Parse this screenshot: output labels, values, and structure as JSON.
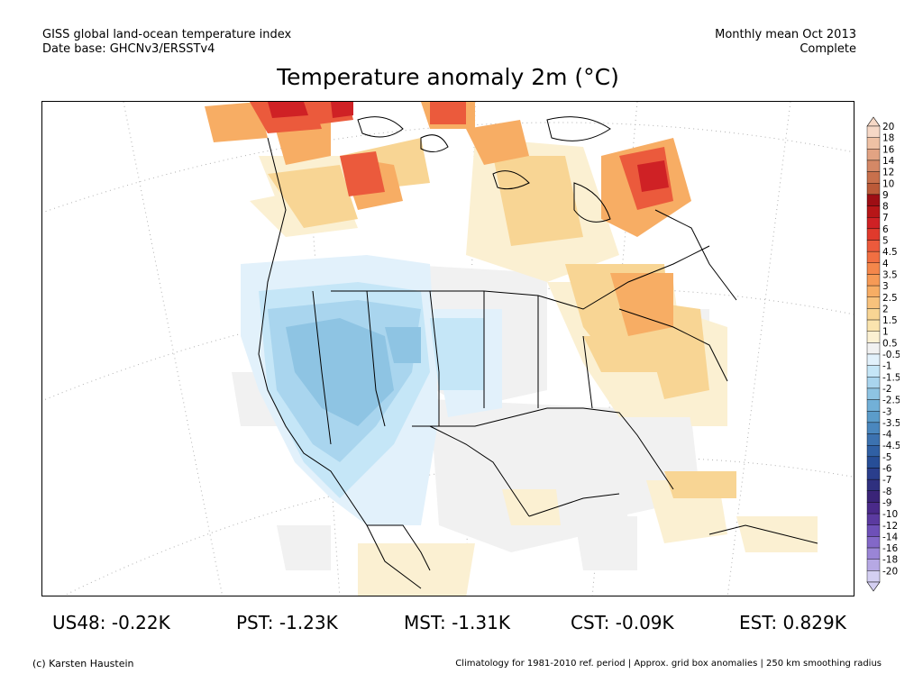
{
  "header": {
    "line1_left": "GISS global land-ocean temperature index",
    "line2_left": "Date base: GHCNv3/ERSSTv4",
    "line1_right": "Monthly mean Oct 2013",
    "line2_right": "Complete"
  },
  "title": "Temperature anomaly 2m (°C)",
  "legend": {
    "labels": [
      "20",
      "18",
      "16",
      "14",
      "12",
      "10",
      "9",
      "8",
      "7",
      "6",
      "5",
      "4.5",
      "4",
      "3.5",
      "3",
      "2.5",
      "2",
      "1.5",
      "1",
      "0.5",
      "-0.5",
      "-1",
      "-1.5",
      "-2",
      "-2.5",
      "-3",
      "-3.5",
      "-4",
      "-4.5",
      "-5",
      "-6",
      "-7",
      "-8",
      "-9",
      "-10",
      "-12",
      "-14",
      "-16",
      "-18",
      "-20"
    ],
    "colors": [
      "#f6d8c6",
      "#efc1a4",
      "#e2a383",
      "#d48866",
      "#c8704c",
      "#bb5a38",
      "#9e0e14",
      "#b71618",
      "#cf2125",
      "#e03a2c",
      "#eb5a3c",
      "#f16f42",
      "#f4874b",
      "#f69a56",
      "#f7ad64",
      "#f8c27c",
      "#f8d594",
      "#fae4ae",
      "#fbf0d2",
      "#f1f1f1",
      "#e2f1fb",
      "#c5e6f7",
      "#a9d5ee",
      "#8ec4e3",
      "#72b0d7",
      "#5b9cca",
      "#4a87be",
      "#3c72b0",
      "#3060a4",
      "#274e97",
      "#2a3e8c",
      "#2f307f",
      "#3a2478",
      "#4a2a8a",
      "#5b3aa0",
      "#6e50b8",
      "#8368c8",
      "#9a85d6",
      "#b6a8e4",
      "#d4cff2"
    ]
  },
  "stats": [
    {
      "label": "US48: -0.22K"
    },
    {
      "label": "PST: -1.23K"
    },
    {
      "label": "MST: -1.31K"
    },
    {
      "label": "CST: -0.09K"
    },
    {
      "label": "EST: 0.829K"
    }
  ],
  "footer": {
    "left": "(c) Karsten Haustein",
    "right": "Climatology for 1981-2010 ref. period | Approx. grid box anomalies | 250 km smoothing radius"
  }
}
